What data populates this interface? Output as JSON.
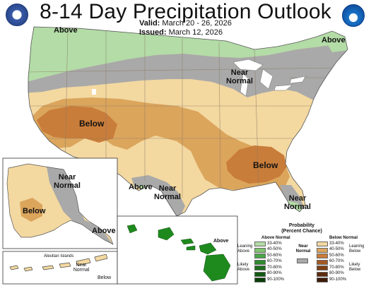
{
  "header": {
    "title": "8-14 Day Precipitation Outlook",
    "valid_label": "Valid:",
    "valid_value": "March 20 - 26, 2026",
    "issued_label": "Issued:",
    "issued_value": "March 12, 2026"
  },
  "logos": {
    "left": "doc-seal-icon",
    "right": "noaa-logo-icon"
  },
  "map_labels": {
    "above_nw": "Above",
    "above_ne": "Above",
    "near_normal_ne": "Near Normal",
    "below_sw": "Below",
    "below_se": "Below",
    "above_tx": "Above",
    "near_normal_tx": "Near Normal",
    "near_normal_fl": "Near Normal",
    "ak_near_normal": "Near Normal",
    "ak_below": "Below",
    "ak_above": "Above",
    "aleutian_title": "Aleutian Islands",
    "aleutian_near_normal": "Near Normal",
    "aleutian_below": "Below",
    "hawaii_above": "Above"
  },
  "legend": {
    "title_line1": "Probability",
    "title_line2": "(Percent Chance)",
    "above_header": "Above Normal",
    "below_header": "Below Normal",
    "near_header": "Near Normal",
    "leaning_above": "Leaning Above",
    "likely_above": "Likely Above",
    "leaning_below": "Leaning Below",
    "likely_below": "Likely Below",
    "ranges": [
      "33-40%",
      "40-50%",
      "50-60%",
      "60-70%",
      "70-80%",
      "80-90%",
      "90-100%"
    ],
    "above_colors": [
      "#b3dca6",
      "#7fc46e",
      "#4ca64a",
      "#2e8b2e",
      "#1f6e1f",
      "#135a13",
      "#0a3f0a"
    ],
    "below_colors": [
      "#f3d8a0",
      "#dba55c",
      "#c97d3a",
      "#a55a25",
      "#7f3f16",
      "#5e2b0e",
      "#3e1b08"
    ],
    "near_color": "#a9a9a9"
  },
  "colors": {
    "above_light": "#b3dca6",
    "above_med": "#7fc46e",
    "below_light": "#f3d8a0",
    "below_med": "#dba55c",
    "below_strong": "#c97d3a",
    "near_normal": "#a9a9a9",
    "hawaii": "#1e8a1e",
    "water": "#ffffff",
    "border": "#6d6d6d"
  }
}
